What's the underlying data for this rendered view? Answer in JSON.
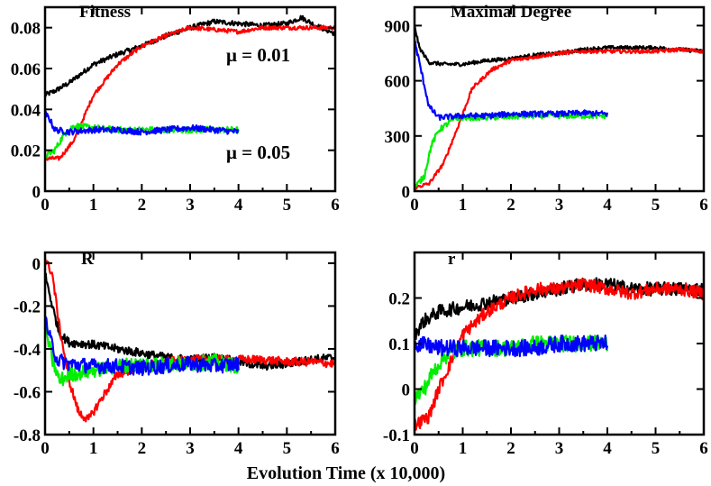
{
  "xlabel": "Evolution Time (x 10,000)",
  "colors": {
    "black": "#000000",
    "red": "#ff0000",
    "green": "#00ee00",
    "blue": "#0000ff"
  },
  "chart_data": [
    {
      "type": "line",
      "title": "Fitness",
      "xlim": [
        0,
        6
      ],
      "ylim": [
        0,
        0.09
      ],
      "xticks": [
        0,
        1,
        2,
        3,
        4,
        5,
        6
      ],
      "yticks": [
        0,
        0.02,
        0.04,
        0.06,
        0.08
      ],
      "ytick_labels": [
        "0",
        "0.02",
        "0.04",
        "0.06",
        "0.08"
      ],
      "annotations": [
        {
          "text": "μ = 0.01",
          "x": 4.6,
          "y": 0.066
        },
        {
          "text": "μ = 0.05",
          "x": 4.6,
          "y": 0.016
        }
      ],
      "series": [
        {
          "name": "black",
          "color": "#000000",
          "noise": 0.0012,
          "x": [
            0,
            0.2,
            0.5,
            1,
            1.5,
            2,
            2.5,
            3,
            3.5,
            4,
            4.5,
            5,
            5.3,
            5.6,
            6
          ],
          "y": [
            0.047,
            0.049,
            0.053,
            0.062,
            0.067,
            0.071,
            0.076,
            0.08,
            0.083,
            0.082,
            0.081,
            0.082,
            0.085,
            0.081,
            0.077
          ]
        },
        {
          "name": "red",
          "color": "#ff0000",
          "noise": 0.001,
          "x": [
            0,
            0.3,
            0.6,
            1,
            1.5,
            2,
            2.5,
            3,
            3.5,
            4,
            4.5,
            5,
            5.5,
            6
          ],
          "y": [
            0.016,
            0.016,
            0.025,
            0.047,
            0.062,
            0.071,
            0.076,
            0.08,
            0.079,
            0.078,
            0.08,
            0.08,
            0.08,
            0.08
          ]
        },
        {
          "name": "green",
          "color": "#00ee00",
          "noise": 0.0015,
          "x": [
            0,
            0.2,
            0.4,
            0.6,
            1,
            1.5,
            2,
            2.5,
            3,
            3.5,
            4
          ],
          "y": [
            0.017,
            0.02,
            0.028,
            0.032,
            0.031,
            0.03,
            0.03,
            0.03,
            0.03,
            0.03,
            0.03
          ]
        },
        {
          "name": "blue",
          "color": "#0000ff",
          "noise": 0.0015,
          "x": [
            0,
            0.1,
            0.2,
            0.5,
            1,
            1.5,
            2,
            2.5,
            3,
            3.5,
            4
          ],
          "y": [
            0.038,
            0.035,
            0.03,
            0.029,
            0.03,
            0.03,
            0.029,
            0.03,
            0.031,
            0.03,
            0.029
          ]
        }
      ]
    },
    {
      "type": "line",
      "title": "Maximal Degree",
      "xlim": [
        0,
        6
      ],
      "ylim": [
        0,
        1000
      ],
      "xticks": [
        0,
        1,
        2,
        3,
        4,
        5,
        6
      ],
      "yticks": [
        0,
        300,
        600,
        900
      ],
      "ytick_labels": [
        "0",
        "300",
        "600",
        "900"
      ],
      "annotations": [],
      "series": [
        {
          "name": "black",
          "color": "#000000",
          "noise": 10,
          "x": [
            0,
            0.1,
            0.3,
            0.6,
            1,
            1.5,
            2,
            2.5,
            3,
            3.5,
            4,
            4.5,
            5,
            5.5,
            6
          ],
          "y": [
            900,
            780,
            700,
            690,
            690,
            710,
            720,
            740,
            750,
            770,
            780,
            780,
            780,
            770,
            760
          ]
        },
        {
          "name": "red",
          "color": "#ff0000",
          "noise": 10,
          "x": [
            0,
            0.3,
            0.6,
            0.9,
            1.2,
            1.6,
            2,
            2.5,
            3,
            3.5,
            4,
            4.5,
            5,
            5.5,
            6
          ],
          "y": [
            20,
            40,
            150,
            350,
            560,
            660,
            710,
            730,
            750,
            760,
            760,
            760,
            760,
            770,
            760
          ]
        },
        {
          "name": "green",
          "color": "#00ee00",
          "noise": 15,
          "x": [
            0,
            0.2,
            0.35,
            0.5,
            0.8,
            1,
            1.5,
            2,
            2.5,
            3,
            3.5,
            4
          ],
          "y": [
            20,
            80,
            250,
            330,
            390,
            400,
            400,
            405,
            410,
            410,
            410,
            410
          ]
        },
        {
          "name": "blue",
          "color": "#0000ff",
          "noise": 15,
          "x": [
            0,
            0.1,
            0.3,
            0.5,
            1,
            1.5,
            2,
            2.5,
            3,
            3.5,
            4
          ],
          "y": [
            820,
            700,
            460,
            400,
            410,
            410,
            420,
            420,
            420,
            425,
            420
          ]
        }
      ]
    },
    {
      "type": "line",
      "title": "R",
      "xlim": [
        0,
        6
      ],
      "ylim": [
        -0.8,
        0.05
      ],
      "xticks": [
        0,
        1,
        2,
        3,
        4,
        5,
        6
      ],
      "yticks": [
        -0.8,
        -0.6,
        -0.4,
        -0.2,
        0
      ],
      "ytick_labels": [
        "-0.8",
        "-0.6",
        "-0.4",
        "-0.2",
        "0"
      ],
      "annotations": [],
      "series": [
        {
          "name": "black",
          "color": "#000000",
          "noise": 0.02,
          "x": [
            0,
            0.15,
            0.3,
            0.5,
            1,
            1.5,
            2,
            2.5,
            3,
            3.5,
            4,
            4.5,
            5,
            5.5,
            6
          ],
          "y": [
            -0.05,
            -0.2,
            -0.33,
            -0.37,
            -0.38,
            -0.4,
            -0.42,
            -0.44,
            -0.45,
            -0.44,
            -0.46,
            -0.48,
            -0.47,
            -0.45,
            -0.44
          ]
        },
        {
          "name": "red",
          "color": "#ff0000",
          "noise": 0.02,
          "x": [
            0,
            0.15,
            0.3,
            0.5,
            0.7,
            0.9,
            1.2,
            1.5,
            2,
            2.5,
            3,
            3.5,
            4,
            4.5,
            5,
            5.5,
            6
          ],
          "y": [
            0.02,
            -0.05,
            -0.3,
            -0.55,
            -0.7,
            -0.73,
            -0.62,
            -0.52,
            -0.48,
            -0.46,
            -0.45,
            -0.45,
            -0.45,
            -0.45,
            -0.46,
            -0.46,
            -0.47
          ]
        },
        {
          "name": "green",
          "color": "#00ee00",
          "noise": 0.035,
          "x": [
            0,
            0.15,
            0.3,
            0.5,
            1,
            1.5,
            2,
            2.5,
            3,
            3.5,
            4
          ],
          "y": [
            -0.3,
            -0.45,
            -0.55,
            -0.52,
            -0.5,
            -0.48,
            -0.47,
            -0.47,
            -0.47,
            -0.46,
            -0.48
          ]
        },
        {
          "name": "blue",
          "color": "#0000ff",
          "noise": 0.035,
          "x": [
            0,
            0.1,
            0.25,
            0.5,
            1,
            1.5,
            2,
            2.5,
            3,
            3.5,
            4
          ],
          "y": [
            -0.25,
            -0.35,
            -0.45,
            -0.47,
            -0.48,
            -0.48,
            -0.49,
            -0.48,
            -0.47,
            -0.48,
            -0.47
          ]
        }
      ]
    },
    {
      "type": "line",
      "title": "r",
      "xlim": [
        0,
        6
      ],
      "ylim": [
        -0.1,
        0.3
      ],
      "xticks": [
        0,
        1,
        2,
        3,
        4,
        5,
        6
      ],
      "yticks": [
        -0.1,
        0,
        0.1,
        0.2
      ],
      "ytick_labels": [
        "-0.1",
        "0",
        "0.1",
        "0.2"
      ],
      "annotations": [],
      "series": [
        {
          "name": "black",
          "color": "#000000",
          "noise": 0.015,
          "x": [
            0,
            0.2,
            0.5,
            1,
            1.5,
            2,
            2.5,
            3,
            3.5,
            4,
            4.5,
            5,
            5.5,
            6
          ],
          "y": [
            0.12,
            0.15,
            0.17,
            0.18,
            0.19,
            0.2,
            0.21,
            0.22,
            0.23,
            0.23,
            0.22,
            0.22,
            0.22,
            0.22
          ]
        },
        {
          "name": "red",
          "color": "#ff0000",
          "noise": 0.014,
          "x": [
            0,
            0.3,
            0.5,
            0.8,
            1,
            1.5,
            2,
            2.5,
            3,
            3.5,
            4,
            4.5,
            5,
            5.5,
            6
          ],
          "y": [
            -0.08,
            -0.06,
            0.0,
            0.07,
            0.12,
            0.17,
            0.2,
            0.22,
            0.22,
            0.23,
            0.22,
            0.21,
            0.22,
            0.22,
            0.21
          ]
        },
        {
          "name": "green",
          "color": "#00ee00",
          "noise": 0.018,
          "x": [
            0,
            0.2,
            0.4,
            0.6,
            1,
            1.5,
            2,
            2.5,
            3,
            3.5,
            4
          ],
          "y": [
            -0.02,
            0.0,
            0.04,
            0.07,
            0.09,
            0.09,
            0.09,
            0.1,
            0.1,
            0.1,
            0.1
          ]
        },
        {
          "name": "blue",
          "color": "#0000ff",
          "noise": 0.018,
          "x": [
            0,
            0.5,
            1,
            1.5,
            2,
            2.5,
            3,
            3.5,
            4
          ],
          "y": [
            0.1,
            0.09,
            0.09,
            0.09,
            0.09,
            0.09,
            0.1,
            0.1,
            0.1
          ]
        }
      ]
    }
  ]
}
